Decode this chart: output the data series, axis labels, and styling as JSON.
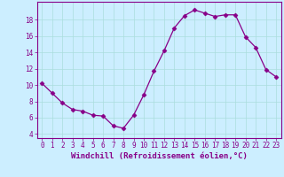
{
  "x": [
    0,
    1,
    2,
    3,
    4,
    5,
    6,
    7,
    8,
    9,
    10,
    11,
    12,
    13,
    14,
    15,
    16,
    17,
    18,
    19,
    20,
    21,
    22,
    23
  ],
  "y": [
    10.2,
    9.0,
    7.8,
    7.0,
    6.8,
    6.3,
    6.2,
    5.0,
    4.7,
    6.3,
    8.8,
    11.7,
    14.2,
    17.0,
    18.5,
    19.2,
    18.8,
    18.4,
    18.6,
    18.6,
    15.9,
    14.6,
    11.9,
    11.0
  ],
  "line_color": "#880088",
  "marker": "D",
  "marker_size": 2.5,
  "bg_color": "#cceeff",
  "grid_color": "#aadddd",
  "xlabel": "Windchill (Refroidissement éolien,°C)",
  "ylim": [
    3.5,
    20.2
  ],
  "xlim": [
    -0.5,
    23.5
  ],
  "yticks": [
    4,
    6,
    8,
    10,
    12,
    14,
    16,
    18
  ],
  "xticks": [
    0,
    1,
    2,
    3,
    4,
    5,
    6,
    7,
    8,
    9,
    10,
    11,
    12,
    13,
    14,
    15,
    16,
    17,
    18,
    19,
    20,
    21,
    22,
    23
  ],
  "label_fontsize": 6.5,
  "tick_fontsize": 5.5
}
